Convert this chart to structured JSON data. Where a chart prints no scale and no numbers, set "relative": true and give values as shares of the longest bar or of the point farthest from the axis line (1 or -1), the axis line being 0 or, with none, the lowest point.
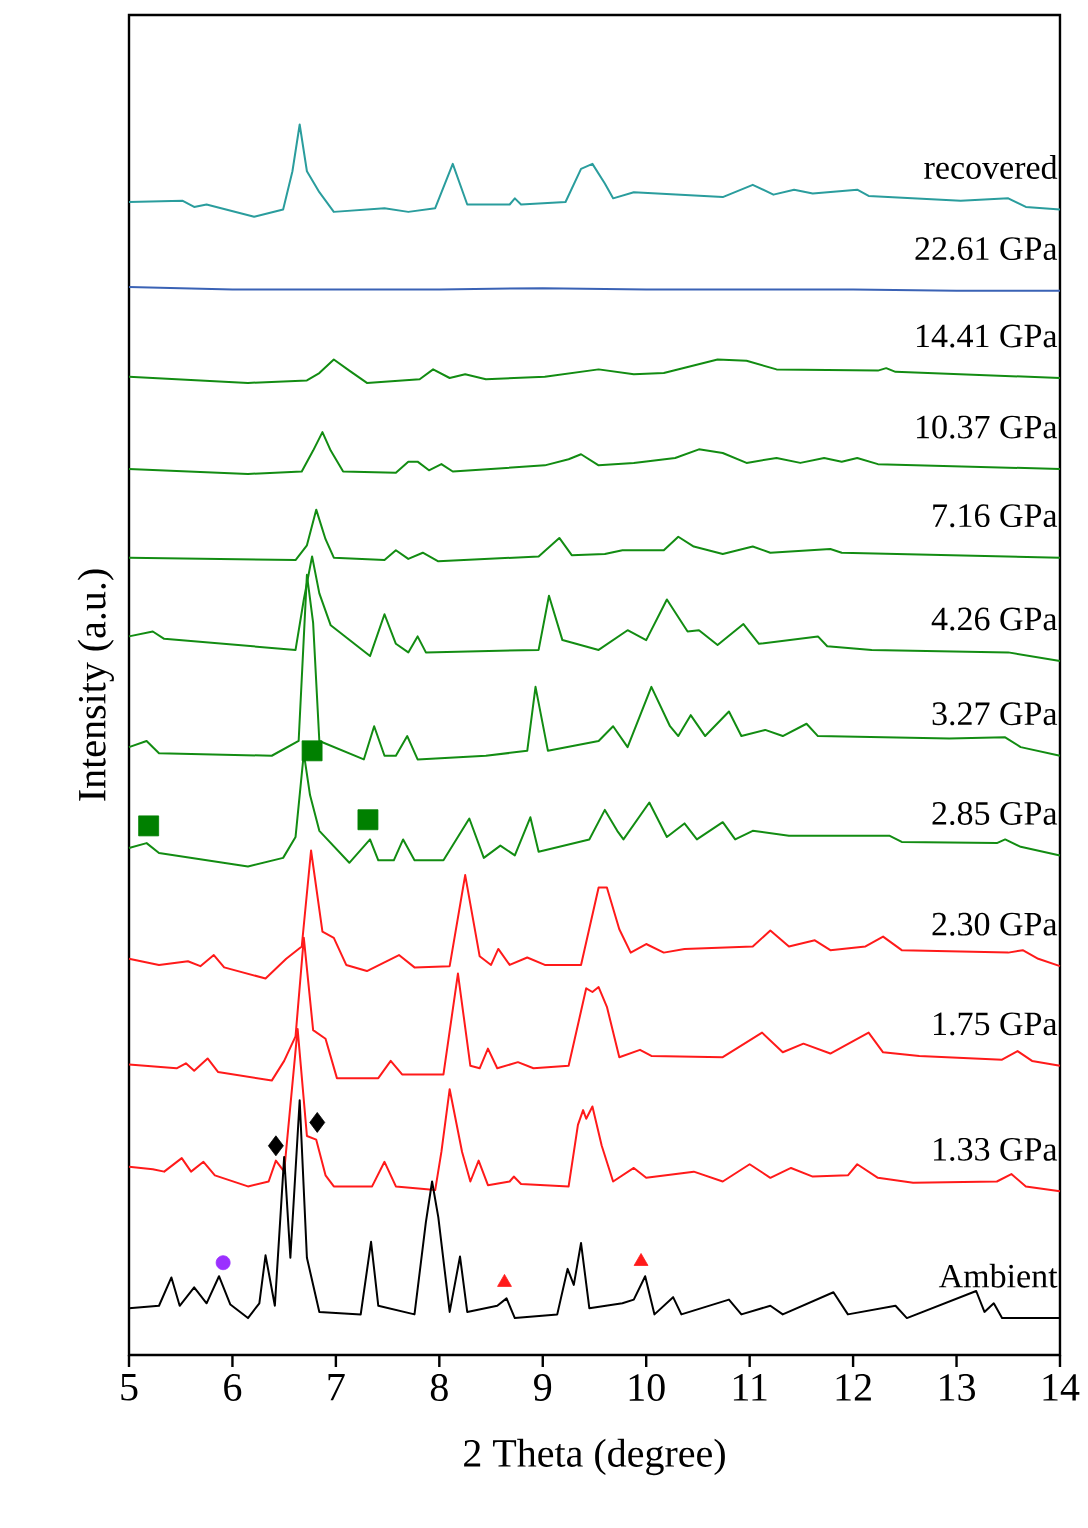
{
  "chart_data": {
    "type": "line",
    "relative": true,
    "xlabel": "2 Theta (degree)",
    "ylabel": "Intensity (a.u.)",
    "xlim": [
      5,
      14
    ],
    "xticks": [
      5,
      6,
      7,
      8,
      9,
      10,
      11,
      12,
      13,
      14
    ],
    "series": [
      {
        "name": "recovered",
        "color": "#2a9d9d",
        "x": [
          5.0,
          5.52,
          5.63,
          5.75,
          6.21,
          6.49,
          6.58,
          6.65,
          6.72,
          6.84,
          6.98,
          7.47,
          7.7,
          7.96,
          8.13,
          8.27,
          8.68,
          8.73,
          8.79,
          9.22,
          9.37,
          9.48,
          9.6,
          9.68,
          9.88,
          10.74,
          11.03,
          11.23,
          11.43,
          11.61,
          12.04,
          12.15,
          13.04,
          13.5,
          13.67,
          14.0
        ],
        "values": [
          0.937,
          0.938,
          0.933,
          0.935,
          0.925,
          0.931,
          0.962,
          1.0,
          0.962,
          0.945,
          0.929,
          0.932,
          0.929,
          0.932,
          0.968,
          0.935,
          0.935,
          0.94,
          0.935,
          0.937,
          0.964,
          0.968,
          0.952,
          0.94,
          0.945,
          0.941,
          0.951,
          0.943,
          0.947,
          0.944,
          0.947,
          0.942,
          0.938,
          0.94,
          0.933,
          0.931
        ]
      },
      {
        "name": "22.61 GPa",
        "color": "#3a62b5",
        "x": [
          5,
          6,
          7,
          8,
          9,
          10,
          11,
          12,
          13,
          14
        ],
        "values": [
          0.868,
          0.866,
          0.866,
          0.866,
          0.867,
          0.866,
          0.866,
          0.866,
          0.865,
          0.865
        ]
      },
      {
        "name": "14.41 GPa",
        "color": "#128c12",
        "x": [
          5.0,
          6.15,
          6.72,
          6.84,
          6.98,
          7.13,
          7.3,
          7.81,
          7.94,
          8.1,
          8.25,
          8.45,
          9.02,
          9.54,
          9.88,
          10.17,
          10.69,
          10.97,
          11.26,
          12.24,
          12.32,
          12.41,
          14.0
        ],
        "values": [
          0.795,
          0.79,
          0.792,
          0.798,
          0.809,
          0.8,
          0.79,
          0.793,
          0.801,
          0.794,
          0.797,
          0.793,
          0.795,
          0.801,
          0.797,
          0.798,
          0.809,
          0.808,
          0.801,
          0.8,
          0.802,
          0.799,
          0.794
        ]
      },
      {
        "name": "10.37 GPa",
        "color": "#128c12",
        "x": [
          5,
          6.15,
          6.67,
          6.78,
          6.87,
          6.95,
          7.07,
          7.58,
          7.7,
          7.79,
          7.9,
          8.02,
          8.13,
          9.02,
          9.25,
          9.37,
          9.54,
          9.88,
          10.28,
          10.51,
          10.74,
          10.97,
          11.26,
          11.49,
          11.72,
          11.89,
          12.04,
          12.24,
          14
        ],
        "values": [
          0.72,
          0.716,
          0.718,
          0.735,
          0.75,
          0.735,
          0.718,
          0.717,
          0.726,
          0.726,
          0.719,
          0.724,
          0.718,
          0.723,
          0.728,
          0.732,
          0.723,
          0.725,
          0.729,
          0.736,
          0.733,
          0.725,
          0.729,
          0.725,
          0.729,
          0.726,
          0.729,
          0.724,
          0.72
        ]
      },
      {
        "name": "7.16 GPa",
        "color": "#128c12",
        "x": [
          5,
          6.61,
          6.72,
          6.81,
          6.9,
          6.98,
          7.47,
          7.58,
          7.7,
          7.84,
          7.99,
          8.96,
          9.16,
          9.28,
          9.6,
          9.77,
          10.17,
          10.31,
          10.46,
          10.74,
          11.03,
          11.2,
          11.78,
          11.89,
          14
        ],
        "values": [
          0.648,
          0.646,
          0.658,
          0.687,
          0.663,
          0.648,
          0.646,
          0.654,
          0.647,
          0.652,
          0.645,
          0.649,
          0.664,
          0.65,
          0.651,
          0.654,
          0.654,
          0.665,
          0.657,
          0.651,
          0.657,
          0.652,
          0.655,
          0.652,
          0.648
        ]
      },
      {
        "name": "4.26 GPa",
        "color": "#128c12",
        "x": [
          5,
          5.23,
          5.34,
          6.61,
          6.69,
          6.77,
          6.84,
          6.95,
          7.33,
          7.47,
          7.58,
          7.7,
          7.79,
          7.87,
          8.96,
          9.06,
          9.19,
          9.54,
          9.82,
          10.0,
          10.2,
          10.4,
          10.51,
          10.69,
          10.94,
          11.09,
          11.66,
          11.75,
          12.18,
          13.5,
          14
        ],
        "values": [
          0.584,
          0.588,
          0.582,
          0.573,
          0.614,
          0.649,
          0.619,
          0.593,
          0.568,
          0.602,
          0.578,
          0.571,
          0.584,
          0.571,
          0.573,
          0.617,
          0.581,
          0.573,
          0.589,
          0.581,
          0.614,
          0.588,
          0.589,
          0.577,
          0.594,
          0.578,
          0.584,
          0.576,
          0.573,
          0.571,
          0.564
        ]
      },
      {
        "name": "3.27 GPa",
        "color": "#128c12",
        "x": [
          5,
          5.17,
          5.29,
          6.38,
          6.64,
          6.72,
          6.78,
          6.84,
          7.27,
          7.37,
          7.47,
          7.58,
          7.69,
          7.79,
          8.45,
          8.85,
          8.93,
          9.05,
          9.54,
          9.68,
          9.82,
          10.05,
          10.23,
          10.31,
          10.43,
          10.57,
          10.8,
          10.92,
          11.15,
          11.32,
          11.55,
          11.66,
          12.93,
          13.47,
          13.62,
          14
        ],
        "values": [
          0.494,
          0.499,
          0.489,
          0.487,
          0.499,
          0.634,
          0.595,
          0.499,
          0.484,
          0.511,
          0.487,
          0.487,
          0.503,
          0.484,
          0.487,
          0.491,
          0.543,
          0.491,
          0.499,
          0.511,
          0.494,
          0.543,
          0.511,
          0.503,
          0.52,
          0.503,
          0.523,
          0.503,
          0.508,
          0.503,
          0.513,
          0.503,
          0.501,
          0.502,
          0.494,
          0.487
        ]
      },
      {
        "name": "2.85 GPa",
        "color": "#128c12",
        "x": [
          5,
          5.17,
          5.29,
          6.15,
          6.49,
          6.61,
          6.69,
          6.75,
          6.84,
          7.13,
          7.33,
          7.41,
          7.56,
          7.65,
          7.76,
          8.04,
          8.29,
          8.43,
          8.59,
          8.73,
          8.88,
          8.96,
          9.45,
          9.6,
          9.72,
          9.78,
          10.03,
          10.2,
          10.37,
          10.49,
          10.74,
          10.86,
          11.03,
          11.38,
          12.35,
          12.47,
          13.39,
          13.47,
          13.62,
          14
        ],
        "values": [
          0.412,
          0.416,
          0.408,
          0.397,
          0.404,
          0.421,
          0.489,
          0.455,
          0.426,
          0.4,
          0.419,
          0.402,
          0.402,
          0.419,
          0.402,
          0.402,
          0.436,
          0.404,
          0.414,
          0.406,
          0.437,
          0.409,
          0.419,
          0.443,
          0.426,
          0.419,
          0.449,
          0.421,
          0.432,
          0.419,
          0.433,
          0.419,
          0.426,
          0.422,
          0.422,
          0.417,
          0.416,
          0.419,
          0.413,
          0.406
        ]
      },
      {
        "name": "2.30 GPa",
        "color": "#ff1a1a",
        "x": [
          5,
          5.29,
          5.57,
          5.69,
          5.82,
          5.92,
          6.32,
          6.52,
          6.67,
          6.76,
          6.87,
          6.98,
          7.1,
          7.3,
          7.61,
          7.76,
          8.1,
          8.25,
          8.39,
          8.5,
          8.57,
          8.68,
          8.85,
          9.02,
          9.37,
          9.54,
          9.62,
          9.74,
          9.85,
          10.0,
          10.17,
          10.37,
          11.03,
          11.2,
          11.38,
          11.63,
          11.78,
          12.12,
          12.29,
          12.47,
          13.5,
          13.64,
          13.79,
          14
        ],
        "values": [
          0.322,
          0.317,
          0.32,
          0.316,
          0.325,
          0.315,
          0.306,
          0.322,
          0.332,
          0.41,
          0.344,
          0.339,
          0.317,
          0.312,
          0.325,
          0.315,
          0.316,
          0.39,
          0.324,
          0.317,
          0.33,
          0.317,
          0.323,
          0.317,
          0.317,
          0.38,
          0.38,
          0.346,
          0.327,
          0.334,
          0.327,
          0.33,
          0.332,
          0.345,
          0.332,
          0.337,
          0.329,
          0.332,
          0.34,
          0.329,
          0.327,
          0.329,
          0.322,
          0.316
        ]
      },
      {
        "name": "1.75 GPa",
        "color": "#ff1a1a",
        "x": [
          5,
          5.46,
          5.55,
          5.63,
          5.76,
          5.86,
          6.38,
          6.5,
          6.61,
          6.69,
          6.78,
          6.9,
          7.01,
          7.41,
          7.53,
          7.64,
          8.04,
          8.18,
          8.3,
          8.39,
          8.47,
          8.56,
          8.76,
          8.91,
          9.25,
          9.42,
          9.48,
          9.54,
          9.62,
          9.74,
          9.94,
          10.05,
          10.74,
          11.12,
          11.32,
          11.52,
          11.78,
          12.15,
          12.29,
          12.64,
          13.44,
          13.59,
          13.73,
          14
        ],
        "values": [
          0.236,
          0.233,
          0.237,
          0.231,
          0.241,
          0.23,
          0.223,
          0.239,
          0.259,
          0.339,
          0.264,
          0.257,
          0.225,
          0.225,
          0.239,
          0.228,
          0.228,
          0.31,
          0.235,
          0.233,
          0.249,
          0.233,
          0.238,
          0.233,
          0.235,
          0.298,
          0.295,
          0.299,
          0.283,
          0.242,
          0.248,
          0.243,
          0.242,
          0.262,
          0.246,
          0.253,
          0.245,
          0.262,
          0.246,
          0.243,
          0.24,
          0.247,
          0.239,
          0.235
        ]
      },
      {
        "name": "1.33 GPa",
        "color": "#ff1a1a",
        "x": [
          5,
          5.23,
          5.34,
          5.51,
          5.6,
          5.72,
          5.83,
          6.15,
          6.35,
          6.42,
          6.5,
          6.63,
          6.72,
          6.81,
          6.9,
          6.98,
          7.35,
          7.47,
          7.58,
          7.96,
          8.02,
          8.1,
          8.22,
          8.3,
          8.38,
          8.47,
          8.68,
          8.72,
          8.79,
          9.25,
          9.34,
          9.39,
          9.42,
          9.48,
          9.57,
          9.68,
          9.88,
          10.0,
          10.46,
          10.74,
          11.0,
          11.2,
          11.4,
          11.61,
          11.95,
          12.04,
          12.24,
          12.58,
          13.39,
          13.53,
          13.67,
          14
        ],
        "values": [
          0.153,
          0.151,
          0.149,
          0.16,
          0.149,
          0.157,
          0.146,
          0.137,
          0.141,
          0.158,
          0.149,
          0.265,
          0.178,
          0.175,
          0.146,
          0.137,
          0.137,
          0.157,
          0.137,
          0.134,
          0.165,
          0.216,
          0.165,
          0.141,
          0.158,
          0.138,
          0.141,
          0.145,
          0.139,
          0.137,
          0.187,
          0.199,
          0.192,
          0.202,
          0.17,
          0.141,
          0.152,
          0.144,
          0.149,
          0.141,
          0.155,
          0.144,
          0.152,
          0.145,
          0.146,
          0.155,
          0.144,
          0.14,
          0.141,
          0.147,
          0.137,
          0.133
        ]
      },
      {
        "name": "Ambient",
        "color": "#000000",
        "x": [
          5,
          5.29,
          5.41,
          5.49,
          5.63,
          5.75,
          5.87,
          5.98,
          6.15,
          6.26,
          6.32,
          6.41,
          6.5,
          6.56,
          6.65,
          6.72,
          6.84,
          7.24,
          7.34,
          7.41,
          7.76,
          7.87,
          7.93,
          7.99,
          8.1,
          8.2,
          8.27,
          8.56,
          8.65,
          8.73,
          9.14,
          9.24,
          9.3,
          9.37,
          9.45,
          9.77,
          9.88,
          9.99,
          10.08,
          10.26,
          10.34,
          10.8,
          10.92,
          11.2,
          11.32,
          11.81,
          11.95,
          12.41,
          12.52,
          13.19,
          13.27,
          13.36,
          13.44,
          14
        ],
        "values": [
          0.038,
          0.04,
          0.063,
          0.04,
          0.055,
          0.042,
          0.064,
          0.041,
          0.03,
          0.042,
          0.081,
          0.04,
          0.161,
          0.079,
          0.207,
          0.079,
          0.035,
          0.033,
          0.092,
          0.04,
          0.033,
          0.108,
          0.141,
          0.112,
          0.035,
          0.08,
          0.035,
          0.04,
          0.046,
          0.03,
          0.033,
          0.07,
          0.057,
          0.091,
          0.038,
          0.042,
          0.045,
          0.064,
          0.033,
          0.047,
          0.033,
          0.045,
          0.033,
          0.04,
          0.033,
          0.051,
          0.033,
          0.04,
          0.03,
          0.052,
          0.035,
          0.042,
          0.03,
          0.03
        ]
      },
      {
        "type": "scatter",
        "marker": "circle",
        "color": "#9b30ff",
        "x": [
          5.91
        ],
        "values": [
          0.075
        ]
      },
      {
        "type": "scatter",
        "marker": "triangle",
        "color": "#ff1a1a",
        "x": [
          8.63,
          9.95
        ],
        "values": [
          0.059,
          0.076
        ]
      },
      {
        "type": "scatter",
        "marker": "diamond",
        "color": "#000000",
        "x": [
          6.42,
          6.82
        ],
        "values": [
          0.17,
          0.189
        ]
      },
      {
        "type": "scatter",
        "marker": "square",
        "color": "#008000",
        "x": [
          5.19,
          6.77,
          7.31
        ],
        "values": [
          0.43,
          0.491,
          0.435
        ]
      }
    ]
  }
}
